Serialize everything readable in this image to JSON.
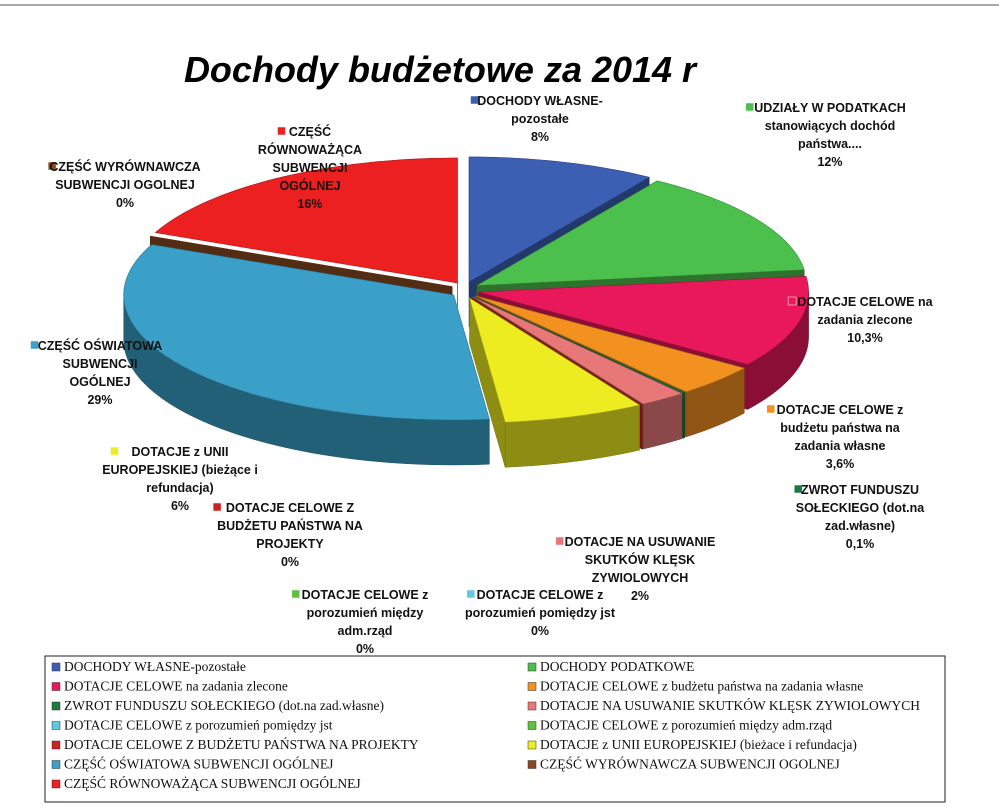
{
  "chart_data": {
    "type": "pie",
    "title": "Dochody budżetowe za 2014 r",
    "categories": [
      "DOCHODY WŁASNE-pozostałe",
      "DOCHODY PODATKOWE",
      "DOTACJE CELOWE na zadania zlecone",
      "DOTACJE CELOWE z budżetu państwa na zadania własne",
      "ZWROT FUNDUSZU SOŁECKIEGO (dot.na zad.własne)",
      "DOTACJE NA USUWANIE SKUTKÓW KLĘSK ZYWIOLOWYCH",
      "DOTACJE CELOWE z porozumień pomiędzy jst",
      "DOTACJE CELOWE z porozumień między adm.rząd",
      "DOTACJE CELOWE  Z BUDŻETU PAŃSTWA NA PROJEKTY",
      "DOTACJE  z UNII  EUROPEJSKIEJ (bieżace i refundacja)",
      "CZĘŚĆ OŚWIATOWA SUBWENCJI OGÓLNEJ",
      "CZĘŚĆ WYRÓWNAWCZA SUBWENCJI OGOLNEJ",
      "CZĘŚĆ RÓWNOWAŻĄCA SUBWENCJI OGÓLNEJ"
    ],
    "labels": [
      [
        "DOCHODY WŁASNE-",
        "pozostałe"
      ],
      [
        "UDZIAŁY W PODATKACH",
        "stanowiących dochód",
        "państwa...."
      ],
      [
        "DOTACJE CELOWE na",
        "zadania zlecone"
      ],
      [
        "DOTACJE CELOWE z",
        "budżetu państwa na",
        "zadania własne"
      ],
      [
        "ZWROT FUNDUSZU",
        "SOŁECKIEGO (dot.na",
        "zad.własne)"
      ],
      [
        "DOTACJE NA USUWANIE",
        "SKUTKÓW KLĘSK",
        "ZYWIOLOWYCH"
      ],
      [
        "DOTACJE CELOWE z",
        "porozumień pomiędzy jst"
      ],
      [
        "DOTACJE CELOWE z",
        "porozumień między",
        "adm.rząd"
      ],
      [
        "DOTACJE CELOWE  Z",
        "BUDŻETU PAŃSTWA NA",
        "PROJEKTY"
      ],
      [
        "DOTACJE  z UNII",
        "EUROPEJSKIEJ (bieżące i",
        "refundacja)"
      ],
      [
        "CZĘŚĆ OŚWIATOWA",
        "SUBWENCJI",
        "OGÓLNEJ"
      ],
      [
        "CZĘŚĆ WYRÓWNAWCZA",
        "SUBWENCJI OGOLNEJ"
      ],
      [
        "CZĘŚĆ",
        "RÓWNOWAŻĄCA",
        "SUBWENCJI",
        "OGÓLNEJ"
      ]
    ],
    "values": [
      8,
      12,
      10.3,
      3.6,
      0.1,
      2,
      0,
      0,
      0,
      6,
      29,
      0,
      16
    ],
    "value_labels": [
      "8%",
      "12%",
      "10,3%",
      "3,6%",
      "0,1%",
      "2%",
      "0%",
      "0%",
      "0%",
      "6%",
      "29%",
      "0%",
      "16%"
    ],
    "colors": [
      "#3b5fb3",
      "#4cc04c",
      "#e8185a",
      "#f29020",
      "#1a7a40",
      "#e87878",
      "#60c8e0",
      "#60c040",
      "#d02020",
      "#ecec20",
      "#3aa0c8",
      "#8a4a20",
      "#ec2020"
    ]
  }
}
